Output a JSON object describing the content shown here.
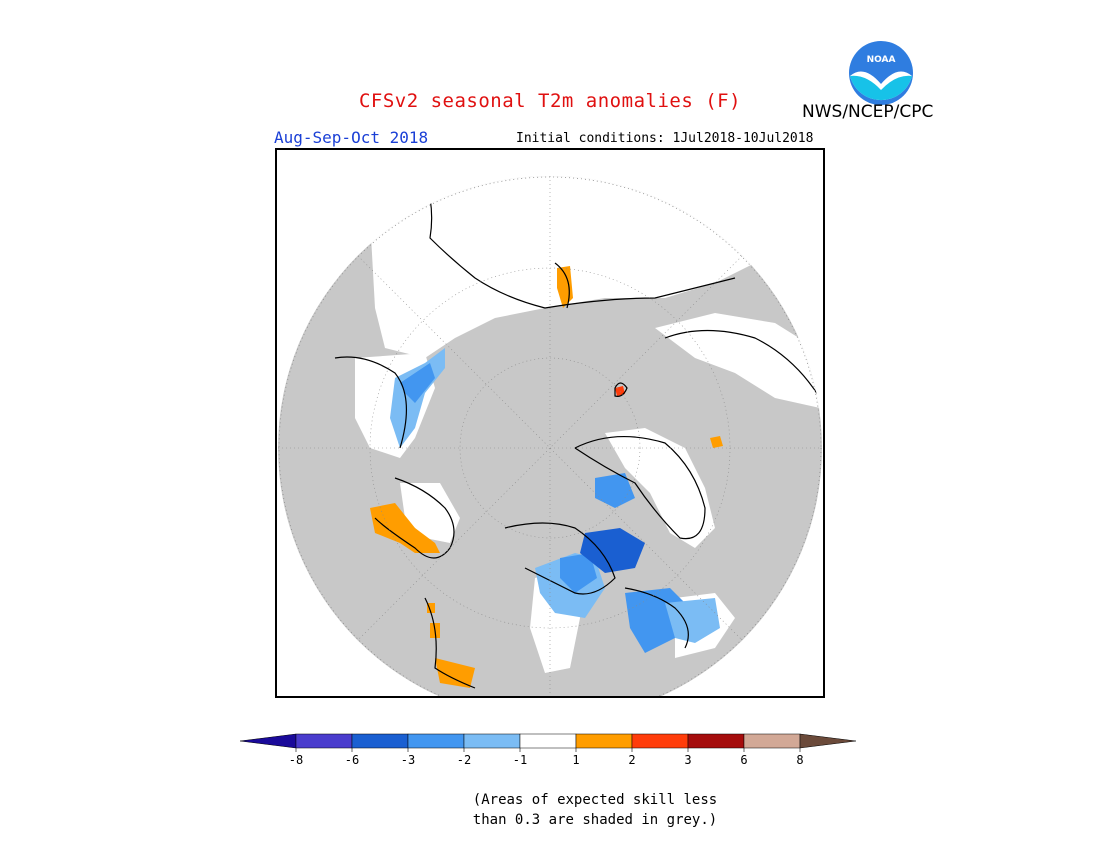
{
  "header": {
    "title": "CFSv2 seasonal T2m anomalies (F)",
    "agency": "NWS/NCEP/CPC",
    "season": "Aug-Sep-Oct 2018",
    "initial_conditions": "Initial conditions: 1Jul2018-10Jul2018",
    "logo_text": "NOAA"
  },
  "colors": {
    "title": "#e01010",
    "season": "#1a3fd6",
    "skill_mask_grey": "#c8c8c8",
    "background": "#ffffff",
    "coastline": "#000000"
  },
  "legend": {
    "labels": [
      "-8",
      "-6",
      "-3",
      "-2",
      "-1",
      "1",
      "2",
      "3",
      "6",
      "8"
    ],
    "left_arrow_color": "#1a0a9a",
    "bins": [
      {
        "color": "#4a3ccd"
      },
      {
        "color": "#1a5fd1"
      },
      {
        "color": "#4296f0"
      },
      {
        "color": "#7bbcf4"
      },
      {
        "color": "#ffffff"
      },
      {
        "color": "#ff9d00"
      },
      {
        "color": "#ff3c0a"
      },
      {
        "color": "#a50c0c"
      },
      {
        "color": "#d2a896"
      }
    ],
    "right_arrow_color": "#6b4a3a"
  },
  "note": {
    "line1": "(Areas of expected skill less",
    "line2": "than 0.3 are shaded in grey.)"
  }
}
